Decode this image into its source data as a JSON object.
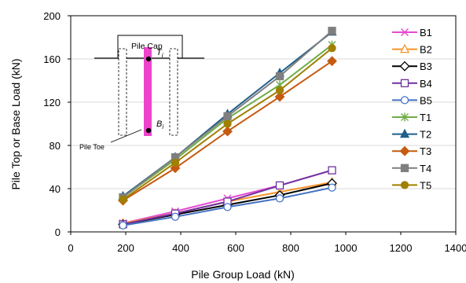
{
  "chart_data": {
    "type": "line",
    "xlabel": "Pile Group Load (kN)",
    "ylabel": "Pile Top or Base Load (kN)",
    "xlim": [
      0,
      1400
    ],
    "ylim": [
      0,
      200
    ],
    "xticks": [
      0,
      200,
      400,
      600,
      800,
      1000,
      1200,
      1400
    ],
    "yticks": [
      0,
      40,
      80,
      120,
      160,
      200
    ],
    "grid": "horizontal",
    "legend_position": "right",
    "inset": {
      "cap_label": "Pile Cap",
      "toe_label": "Pile Toe",
      "top_label": "T",
      "top_sub": "i",
      "base_label": "B",
      "base_sub": "i",
      "pile_color": "#ee44cc"
    },
    "series": [
      {
        "name": "B1",
        "color": "#e64bd2",
        "marker": "x",
        "x": [
          190,
          380,
          570,
          760,
          950
        ],
        "y": [
          8,
          19,
          31,
          43,
          57
        ]
      },
      {
        "name": "B2",
        "color": "#f7932a",
        "marker": "triangle-open",
        "x": [
          190,
          380,
          570,
          760,
          950
        ],
        "y": [
          8,
          17,
          28,
          37,
          46
        ]
      },
      {
        "name": "B3",
        "color": "#000000",
        "marker": "diamond-open",
        "x": [
          190,
          380,
          570,
          760,
          950
        ],
        "y": [
          7,
          16,
          25,
          34,
          45
        ]
      },
      {
        "name": "B4",
        "color": "#7030a0",
        "marker": "square-open",
        "x": [
          190,
          380,
          570,
          760,
          950
        ],
        "y": [
          7,
          17,
          28,
          43,
          57
        ]
      },
      {
        "name": "B5",
        "color": "#4472c4",
        "marker": "circle-open",
        "x": [
          190,
          380,
          570,
          760,
          950
        ],
        "y": [
          6,
          14,
          23,
          31,
          41
        ]
      },
      {
        "name": "T1",
        "color": "#70ad47",
        "marker": "star",
        "x": [
          190,
          380,
          570,
          760,
          950
        ],
        "y": [
          32,
          67,
          105,
          136,
          173
        ]
      },
      {
        "name": "T2",
        "color": "#1f5f8b",
        "marker": "triangle",
        "x": [
          190,
          380,
          570,
          760,
          950
        ],
        "y": [
          33,
          69,
          109,
          147,
          185
        ]
      },
      {
        "name": "T3",
        "color": "#c55a11",
        "marker": "diamond",
        "x": [
          190,
          380,
          570,
          760,
          950
        ],
        "y": [
          29,
          59,
          93,
          125,
          158
        ]
      },
      {
        "name": "T4",
        "color": "#7f7f7f",
        "marker": "square",
        "x": [
          190,
          380,
          570,
          760,
          950
        ],
        "y": [
          32,
          69,
          107,
          144,
          186
        ]
      },
      {
        "name": "T5",
        "color": "#a08000",
        "marker": "circle",
        "x": [
          190,
          380,
          570,
          760,
          950
        ],
        "y": [
          30,
          64,
          100,
          131,
          170
        ]
      }
    ]
  }
}
